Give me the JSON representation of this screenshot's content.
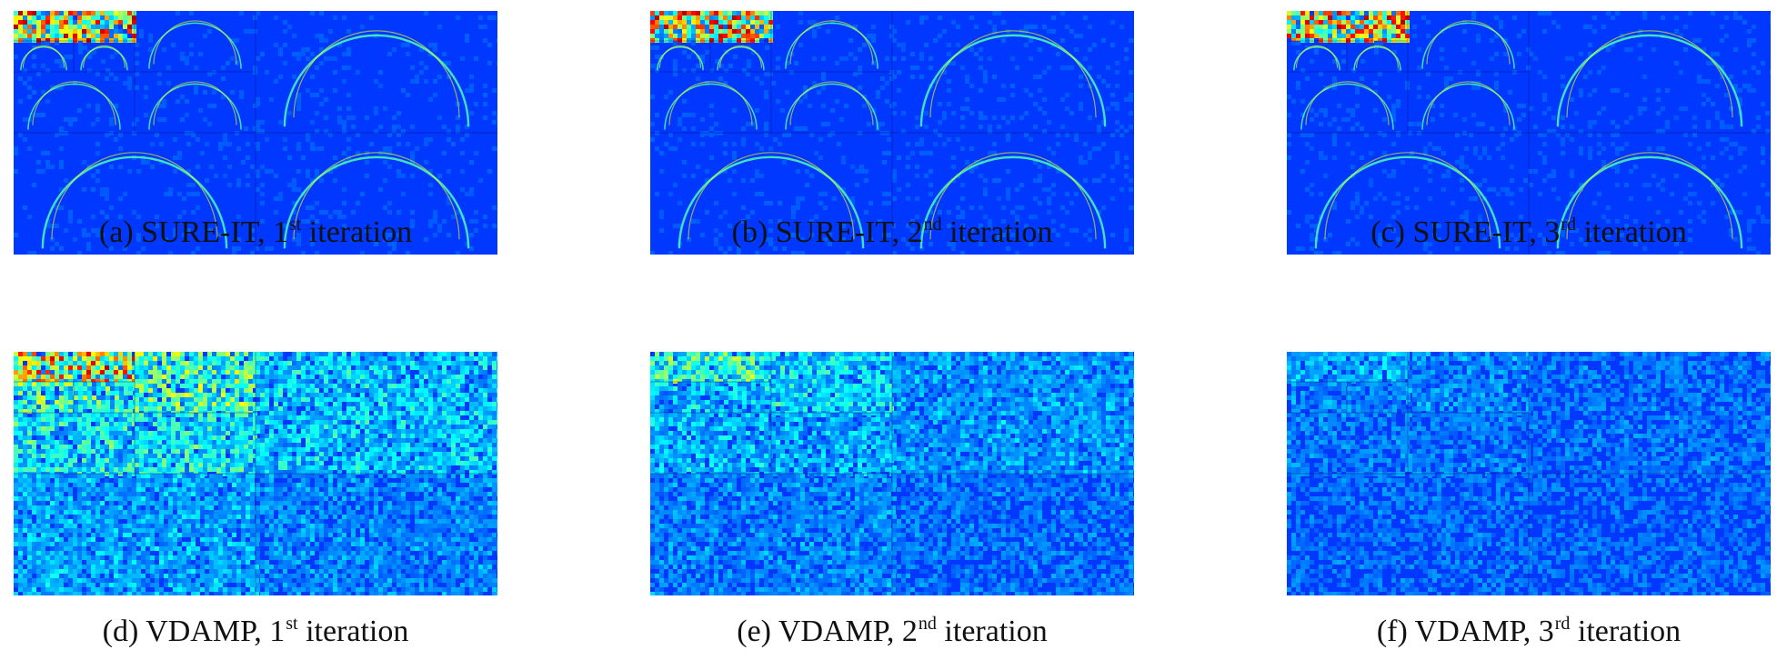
{
  "figure": {
    "panels": [
      {
        "caption_prefix": "(a) SURE-IT, 1",
        "ordinal_suffix": "st",
        "caption_suffix": " iteration",
        "map_type": "wavelet-error-map",
        "intensity": "low"
      },
      {
        "caption_prefix": "(b) SURE-IT, 2",
        "ordinal_suffix": "nd",
        "caption_suffix": " iteration",
        "map_type": "wavelet-error-map",
        "intensity": "low"
      },
      {
        "caption_prefix": "(c) SURE-IT, 3",
        "ordinal_suffix": "rd",
        "caption_suffix": " iteration",
        "map_type": "wavelet-error-map",
        "intensity": "low"
      },
      {
        "caption_prefix": "(d) VDAMP, 1",
        "ordinal_suffix": "st",
        "caption_suffix": " iteration",
        "map_type": "noise-map",
        "intensity": "high"
      },
      {
        "caption_prefix": "(e) VDAMP, 2",
        "ordinal_suffix": "nd",
        "caption_suffix": " iteration",
        "map_type": "noise-map",
        "intensity": "medium"
      },
      {
        "caption_prefix": "(f) VDAMP, 3",
        "ordinal_suffix": "rd",
        "caption_suffix": " iteration",
        "map_type": "noise-map",
        "intensity": "low"
      }
    ],
    "colormap": [
      "#00008f",
      "#0040ff",
      "#00c0ff",
      "#80ff80",
      "#ffc000",
      "#ff2000",
      "#800000"
    ]
  }
}
